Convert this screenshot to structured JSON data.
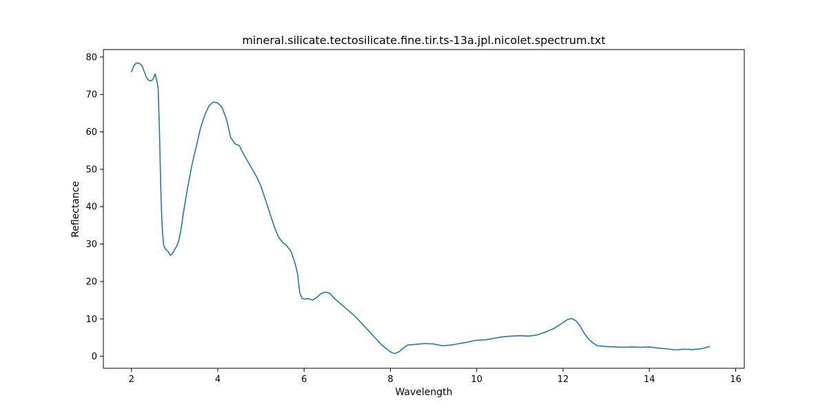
{
  "chart_data": {
    "type": "line",
    "title": "mineral.silicate.tectosilicate.fine.tir.ts-13a.jpl.nicolet.spectrum.txt",
    "xlabel": "Wavelength",
    "ylabel": "Reflectance",
    "xlim": [
      1.35,
      16.2
    ],
    "ylim": [
      -3.2,
      82.0
    ],
    "xticks": [
      2,
      4,
      6,
      8,
      10,
      12,
      14,
      16
    ],
    "yticks": [
      0,
      10,
      20,
      30,
      40,
      50,
      60,
      70,
      80
    ],
    "grid": false,
    "line_color": "#1f77b4",
    "series": [
      {
        "name": "spectrum",
        "x": [
          2.0,
          2.05,
          2.1,
          2.15,
          2.2,
          2.25,
          2.3,
          2.35,
          2.4,
          2.45,
          2.5,
          2.55,
          2.58,
          2.6,
          2.62,
          2.65,
          2.68,
          2.7,
          2.72,
          2.75,
          2.8,
          2.85,
          2.9,
          2.95,
          3.0,
          3.05,
          3.1,
          3.15,
          3.2,
          3.3,
          3.4,
          3.5,
          3.6,
          3.7,
          3.8,
          3.9,
          4.0,
          4.1,
          4.2,
          4.3,
          4.4,
          4.5,
          4.6,
          4.7,
          4.8,
          4.9,
          5.0,
          5.1,
          5.2,
          5.3,
          5.4,
          5.5,
          5.6,
          5.7,
          5.8,
          5.85,
          5.9,
          5.95,
          6.0,
          6.1,
          6.2,
          6.3,
          6.4,
          6.5,
          6.6,
          6.7,
          6.8,
          6.9,
          7.0,
          7.2,
          7.4,
          7.6,
          7.8,
          8.0,
          8.1,
          8.2,
          8.3,
          8.4,
          8.6,
          8.8,
          9.0,
          9.2,
          9.4,
          9.6,
          9.8,
          10.0,
          10.2,
          10.4,
          10.6,
          10.8,
          11.0,
          11.2,
          11.4,
          11.6,
          11.8,
          12.0,
          12.1,
          12.2,
          12.3,
          12.4,
          12.5,
          12.6,
          12.7,
          12.8,
          13.0,
          13.2,
          13.4,
          13.6,
          13.8,
          14.0,
          14.2,
          14.4,
          14.6,
          14.8,
          15.0,
          15.2,
          15.4
        ],
        "values": [
          76.0,
          77.5,
          78.3,
          78.4,
          78.2,
          77.6,
          76.0,
          74.5,
          73.8,
          73.6,
          74.0,
          75.5,
          74.0,
          73.0,
          71.5,
          60.0,
          45.0,
          38.0,
          33.0,
          29.5,
          28.5,
          28.0,
          27.0,
          27.5,
          28.5,
          29.5,
          31.0,
          34.0,
          38.0,
          45.0,
          51.0,
          56.0,
          61.0,
          64.5,
          67.0,
          68.0,
          67.7,
          66.5,
          63.5,
          58.5,
          56.8,
          56.3,
          54.0,
          52.0,
          50.0,
          48.0,
          45.5,
          42.0,
          38.5,
          35.0,
          32.0,
          30.5,
          29.5,
          28.0,
          24.5,
          22.0,
          17.0,
          15.5,
          15.3,
          15.4,
          15.0,
          15.8,
          16.8,
          17.2,
          16.8,
          15.5,
          14.5,
          13.5,
          12.5,
          10.5,
          8.0,
          5.5,
          3.0,
          1.2,
          0.7,
          1.2,
          2.2,
          3.0,
          3.2,
          3.4,
          3.3,
          2.8,
          3.0,
          3.4,
          3.8,
          4.3,
          4.4,
          4.8,
          5.2,
          5.4,
          5.5,
          5.4,
          5.7,
          6.5,
          7.5,
          9.0,
          9.8,
          10.1,
          9.5,
          8.0,
          6.0,
          4.5,
          3.5,
          2.8,
          2.6,
          2.5,
          2.4,
          2.5,
          2.4,
          2.5,
          2.2,
          2.0,
          1.7,
          1.9,
          1.8,
          2.0,
          2.6
        ]
      }
    ]
  }
}
